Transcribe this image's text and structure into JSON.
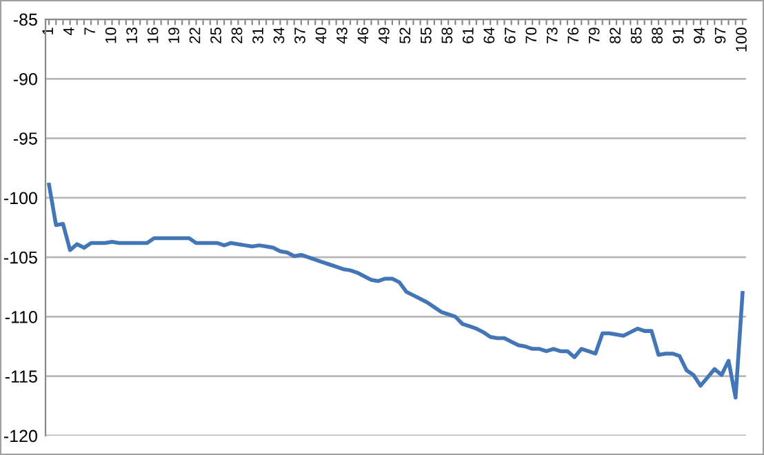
{
  "chart_data": {
    "type": "line",
    "categories": [
      "1",
      null,
      null,
      "4",
      null,
      null,
      "7",
      null,
      null,
      "10",
      null,
      null,
      "13",
      null,
      null,
      "16",
      null,
      null,
      "19",
      null,
      null,
      "22",
      null,
      null,
      "25",
      null,
      null,
      "28",
      null,
      null,
      "31",
      null,
      null,
      "34",
      null,
      null,
      "37",
      null,
      null,
      "40",
      null,
      null,
      "43",
      null,
      null,
      "46",
      null,
      null,
      "49",
      null,
      null,
      "52",
      null,
      null,
      "55",
      null,
      null,
      "58",
      null,
      null,
      "61",
      null,
      null,
      "64",
      null,
      null,
      "67",
      null,
      null,
      "70",
      null,
      null,
      "73",
      null,
      null,
      "76",
      null,
      null,
      "79",
      null,
      null,
      "82",
      null,
      null,
      "85",
      null,
      null,
      "88",
      null,
      null,
      "91",
      null,
      null,
      "94",
      null,
      null,
      "97",
      null,
      null,
      "100"
    ],
    "values": [
      -98.9,
      -102.3,
      -102.2,
      -104.4,
      -103.9,
      -104.2,
      -103.8,
      -103.8,
      -103.8,
      -103.7,
      -103.8,
      -103.8,
      -103.8,
      -103.8,
      -103.8,
      -103.4,
      -103.4,
      -103.4,
      -103.4,
      -103.4,
      -103.4,
      -103.8,
      -103.8,
      -103.8,
      -103.8,
      -104.0,
      -103.8,
      -103.9,
      -104.0,
      -104.1,
      -104.0,
      -104.1,
      -104.2,
      -104.5,
      -104.6,
      -104.9,
      -104.8,
      -105.0,
      -105.2,
      -105.4,
      -105.6,
      -105.8,
      -106.0,
      -106.1,
      -106.3,
      -106.6,
      -106.9,
      -107.0,
      -106.8,
      -106.8,
      -107.1,
      -107.9,
      -108.2,
      -108.5,
      -108.8,
      -109.2,
      -109.6,
      -109.8,
      -110.0,
      -110.6,
      -110.8,
      -111.0,
      -111.3,
      -111.7,
      -111.8,
      -111.8,
      -112.1,
      -112.4,
      -112.5,
      -112.7,
      -112.7,
      -112.9,
      -112.7,
      -112.9,
      -112.9,
      -113.4,
      -112.7,
      -112.9,
      -113.1,
      -111.4,
      -111.4,
      -111.5,
      -111.6,
      -111.3,
      -111.0,
      -111.2,
      -111.2,
      -113.2,
      -113.1,
      -113.1,
      -113.3,
      -114.5,
      -114.9,
      -115.8,
      -115.1,
      -114.4,
      -114.9,
      -113.7,
      -116.8,
      -108.0
    ],
    "color": "#4376b6",
    "ylim": [
      -120,
      -85
    ],
    "yticks": [
      -120,
      -115,
      -110,
      -105,
      -100,
      -95,
      -90,
      -85
    ],
    "grid": "y",
    "line_style": "solid",
    "marker": "none"
  }
}
